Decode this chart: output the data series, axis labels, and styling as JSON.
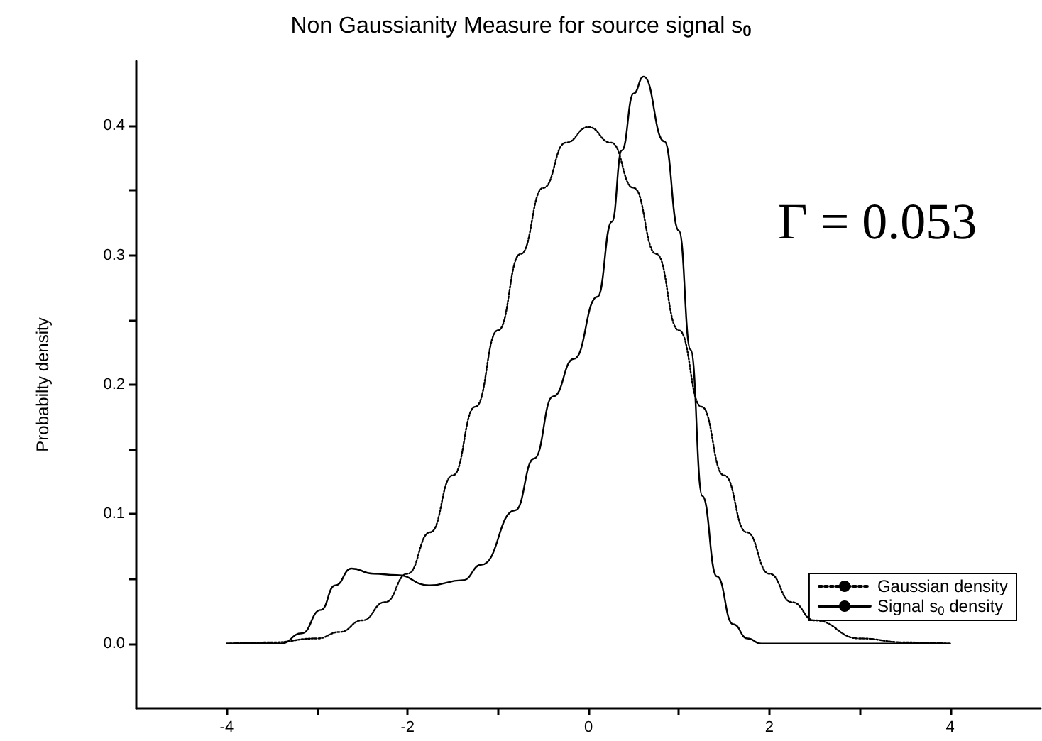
{
  "chart_data": {
    "type": "line",
    "title": "Non Gaussianity Measure for source signal s$_{0}$",
    "ylabel": "Probabilty density",
    "xlim": [
      -5,
      5
    ],
    "xticks": [
      -4,
      {
        "value": -3,
        "label": null
      },
      -2,
      {
        "value": -1,
        "label": null
      },
      0,
      {
        "value": 1,
        "label": null
      },
      2,
      {
        "value": 3,
        "label": null
      },
      4
    ],
    "ylim": [
      -0.05,
      0.45
    ],
    "yticks": [
      {
        "value": 0,
        "label": "0.0"
      },
      {
        "value": 0.05,
        "label": null
      },
      0.1,
      {
        "value": 0.15,
        "label": null
      },
      0.2,
      {
        "value": 0.25,
        "label": null
      },
      0.3,
      {
        "value": 0.35,
        "label": null
      },
      0.4
    ],
    "series": [
      {
        "name": "Gaussian density",
        "color": "#000000",
        "line_style": "dotted",
        "x": [
          -4,
          -3.5,
          -3,
          -2.75,
          -2.5,
          -2.25,
          -2,
          -1.75,
          -1.5,
          -1.25,
          -1,
          -0.75,
          -0.5,
          -0.25,
          0,
          0.25,
          0.5,
          0.75,
          1,
          1.25,
          1.5,
          1.75,
          2,
          2.25,
          2.5,
          3,
          3.5,
          4
        ],
        "values": [
          0,
          0.001,
          0.004,
          0.009,
          0.018,
          0.032,
          0.054,
          0.086,
          0.13,
          0.183,
          0.242,
          0.301,
          0.352,
          0.387,
          0.399,
          0.387,
          0.352,
          0.301,
          0.242,
          0.183,
          0.13,
          0.086,
          0.054,
          0.032,
          0.018,
          0.004,
          0.001,
          0
        ]
      },
      {
        "name": "Signal s$_{0}$ density",
        "color": "#000000",
        "line_style": "solid",
        "x": [
          -4,
          -3.4,
          -3.17,
          -2.96,
          -2.8,
          -2.62,
          -2.38,
          -2.12,
          -1.76,
          -1.39,
          -1.18,
          -0.81,
          -0.6,
          -0.39,
          -0.16,
          0.1,
          0.26,
          0.37,
          0.5,
          0.61,
          0.84,
          1.0,
          1.13,
          1.26,
          1.42,
          1.6,
          1.76,
          1.91,
          4
        ],
        "values": [
          0,
          0,
          0.008,
          0.026,
          0.045,
          0.058,
          0.054,
          0.053,
          0.045,
          0.049,
          0.061,
          0.103,
          0.143,
          0.191,
          0.22,
          0.268,
          0.326,
          0.381,
          0.425,
          0.438,
          0.388,
          0.319,
          0.227,
          0.114,
          0.052,
          0.015,
          0.004,
          0,
          0
        ]
      }
    ],
    "legend": "bottom right",
    "grid": false,
    "marker": "none",
    "annotations": [
      "Γ = 0.053"
    ]
  }
}
